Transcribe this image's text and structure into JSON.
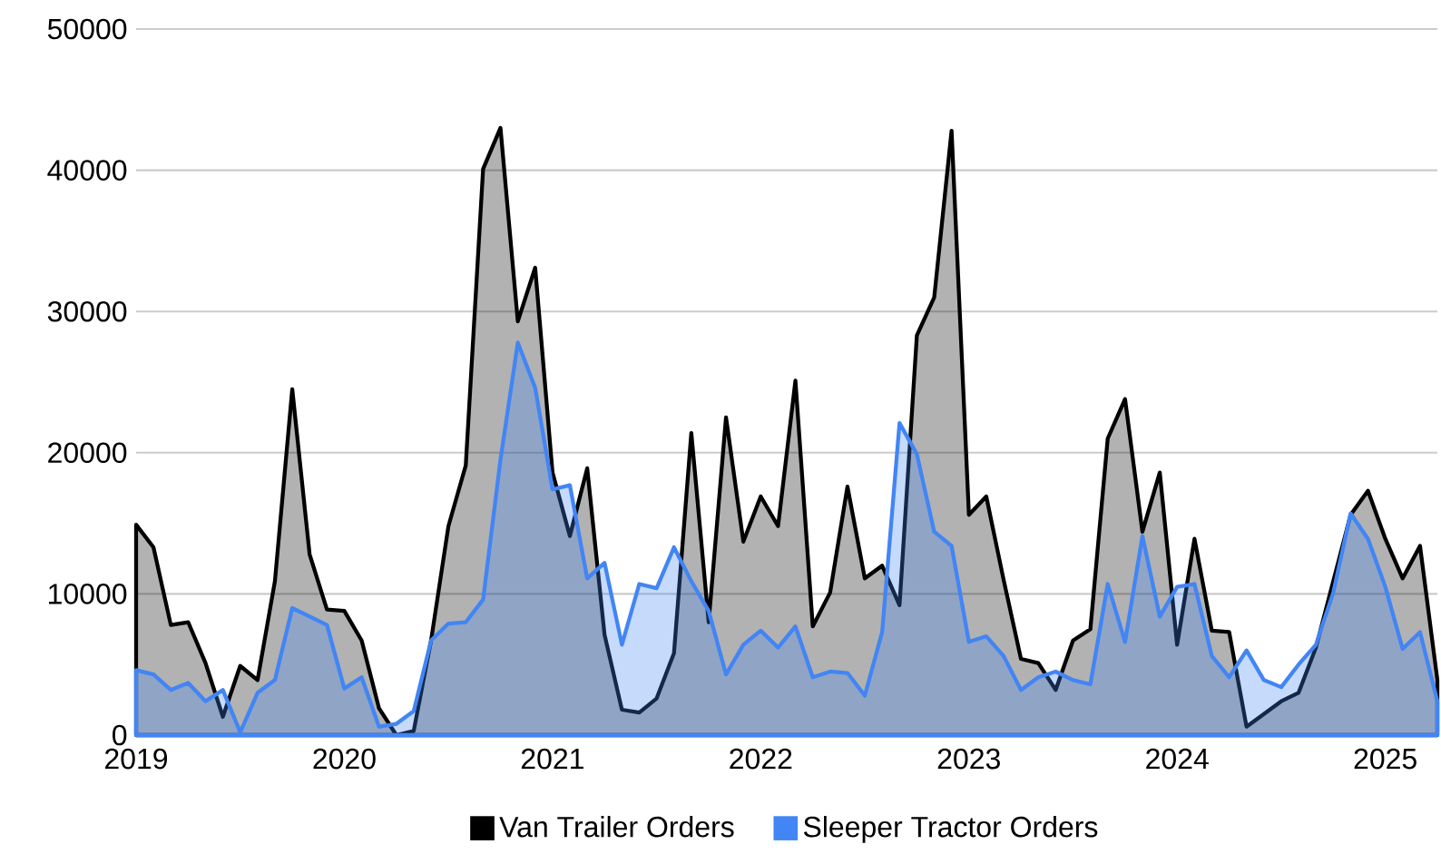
{
  "chart_data": {
    "type": "area",
    "x": [
      "2019-01",
      "2019-02",
      "2019-03",
      "2019-04",
      "2019-05",
      "2019-06",
      "2019-07",
      "2019-08",
      "2019-09",
      "2019-10",
      "2019-11",
      "2019-12",
      "2020-01",
      "2020-02",
      "2020-03",
      "2020-04",
      "2020-05",
      "2020-06",
      "2020-07",
      "2020-08",
      "2020-09",
      "2020-10",
      "2020-11",
      "2020-12",
      "2021-01",
      "2021-02",
      "2021-03",
      "2021-04",
      "2021-05",
      "2021-06",
      "2021-07",
      "2021-08",
      "2021-09",
      "2021-10",
      "2021-11",
      "2021-12",
      "2022-01",
      "2022-02",
      "2022-03",
      "2022-04",
      "2022-05",
      "2022-06",
      "2022-07",
      "2022-08",
      "2022-09",
      "2022-10",
      "2022-11",
      "2022-12",
      "2023-01",
      "2023-02",
      "2023-03",
      "2023-04",
      "2023-05",
      "2023-06",
      "2023-07",
      "2023-08",
      "2023-09",
      "2023-10",
      "2023-11",
      "2023-12",
      "2024-01",
      "2024-02",
      "2024-03",
      "2024-04",
      "2024-05",
      "2024-06",
      "2024-07",
      "2024-08",
      "2024-09",
      "2024-10",
      "2024-11",
      "2024-12",
      "2025-01",
      "2025-02",
      "2025-03",
      "2025-04"
    ],
    "series": [
      {
        "name": "Van Trailer Orders",
        "color": "#000000",
        "values": [
          14900,
          13300,
          7800,
          8000,
          5100,
          1300,
          4900,
          3900,
          10900,
          24500,
          12800,
          8900,
          8800,
          6700,
          1900,
          0,
          300,
          6700,
          14800,
          19100,
          40100,
          43000,
          29300,
          33100,
          18600,
          14100,
          18900,
          7100,
          1800,
          1600,
          2600,
          5800,
          21400,
          8000,
          22500,
          13700,
          16900,
          14800,
          25100,
          7700,
          10100,
          17600,
          11100,
          12000,
          9200,
          28300,
          31000,
          42800,
          15600,
          16900,
          11000,
          5400,
          5100,
          3200,
          6700,
          7500,
          21000,
          23800,
          14400,
          18600,
          6400,
          13900,
          7400,
          7300,
          600,
          1500,
          2400,
          3000,
          6200,
          10900,
          15600,
          17300,
          13900,
          11100,
          13400,
          3900
        ]
      },
      {
        "name": "Sleeper Tractor Orders",
        "color": "#4285f4",
        "values": [
          4600,
          4300,
          3200,
          3700,
          2400,
          3200,
          200,
          3000,
          3900,
          9000,
          8400,
          7800,
          3300,
          4100,
          600,
          800,
          1700,
          6700,
          7900,
          8000,
          9600,
          19500,
          27800,
          24600,
          17400,
          17700,
          11100,
          12200,
          6400,
          10700,
          10400,
          13300,
          10900,
          8800,
          4300,
          6400,
          7400,
          6200,
          7700,
          4100,
          4500,
          4400,
          2800,
          7300,
          22100,
          19900,
          14400,
          13400,
          6600,
          7000,
          5600,
          3200,
          4100,
          4500,
          3900,
          3600,
          10700,
          6600,
          14100,
          8400,
          10500,
          10700,
          5600,
          4100,
          6000,
          3900,
          3400,
          5000,
          6400,
          10100,
          15700,
          13900,
          10500,
          6100,
          7300,
          2400
        ]
      }
    ],
    "xlim": [
      "2019-01",
      "2025-04"
    ],
    "xticks": [
      "2019",
      "2020",
      "2021",
      "2022",
      "2023",
      "2024",
      "2025"
    ],
    "ylim": [
      0,
      50000
    ],
    "yticks": [
      0,
      10000,
      20000,
      30000,
      40000,
      50000
    ],
    "grid": "y",
    "legend": "bottom"
  }
}
